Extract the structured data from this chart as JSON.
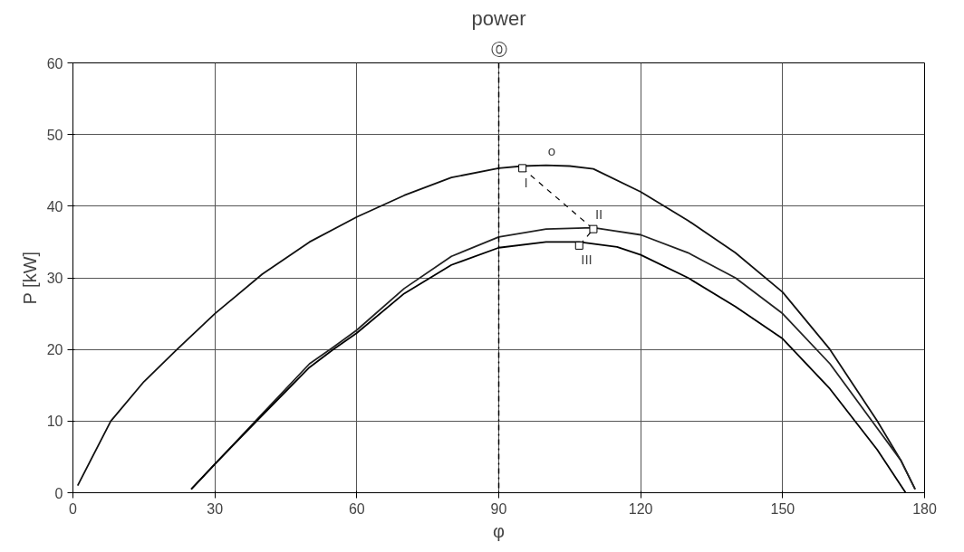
{
  "chart_data": {
    "type": "line",
    "title": "power",
    "xlabel": "φ",
    "ylabel": "P [kW]",
    "xlim": [
      0,
      180
    ],
    "ylim": [
      0,
      60
    ],
    "xticks": [
      0,
      30,
      60,
      90,
      120,
      150,
      180
    ],
    "yticks": [
      0,
      10,
      20,
      30,
      40,
      50,
      60
    ],
    "grid": true,
    "series": [
      {
        "color": "#111111",
        "x": [
          1,
          8,
          15,
          22,
          30,
          40,
          50,
          60,
          70,
          80,
          90,
          95,
          100,
          105,
          110,
          120,
          130,
          140,
          150,
          160,
          165,
          170,
          175,
          178
        ],
        "values": [
          1,
          10,
          15.5,
          20,
          25,
          30.5,
          35,
          38.5,
          41.5,
          44,
          45.3,
          45.6,
          45.7,
          45.6,
          45.2,
          42,
          38,
          33.5,
          28,
          20,
          15,
          10,
          4.5,
          0.5
        ]
      },
      {
        "color": "#222222",
        "x": [
          25,
          30,
          40,
          50,
          55,
          60,
          70,
          80,
          90,
          100,
          110,
          120,
          130,
          140,
          150,
          160,
          170,
          175,
          178
        ],
        "values": [
          0.5,
          4,
          11,
          18,
          20.3,
          22.7,
          28.5,
          33,
          35.7,
          36.8,
          37,
          36,
          33.5,
          30,
          25,
          18,
          9,
          4.5,
          0.5
        ]
      },
      {
        "color": "#000000",
        "x": [
          25,
          30,
          40,
          50,
          55,
          60,
          70,
          80,
          90,
          100,
          107,
          115,
          120,
          130,
          140,
          150,
          160,
          170,
          176
        ],
        "values": [
          0.5,
          4,
          10.8,
          17.5,
          20,
          22.3,
          27.8,
          31.8,
          34.2,
          35,
          35,
          34.3,
          33.2,
          30,
          26,
          21.5,
          14.5,
          6,
          0
        ]
      },
      {
        "type": "scatter",
        "color": "#000000",
        "marker": "square",
        "line_style": "dashed",
        "x": [
          95,
          110,
          107
        ],
        "values": [
          45.3,
          36.8,
          34.5
        ]
      }
    ],
    "ref_lines": [
      {
        "axis": "x",
        "value": 90,
        "line_style": "dashdot",
        "color": "#000000"
      }
    ],
    "annotations": [
      "⓪",
      {
        "text": "I",
        "x": 95,
        "y": 45.3
      },
      {
        "text": "II",
        "x": 110,
        "y": 36.8
      },
      {
        "text": "III",
        "x": 107,
        "y": 34.5
      },
      {
        "text": "o",
        "x": 100,
        "y": 45.7
      }
    ]
  }
}
